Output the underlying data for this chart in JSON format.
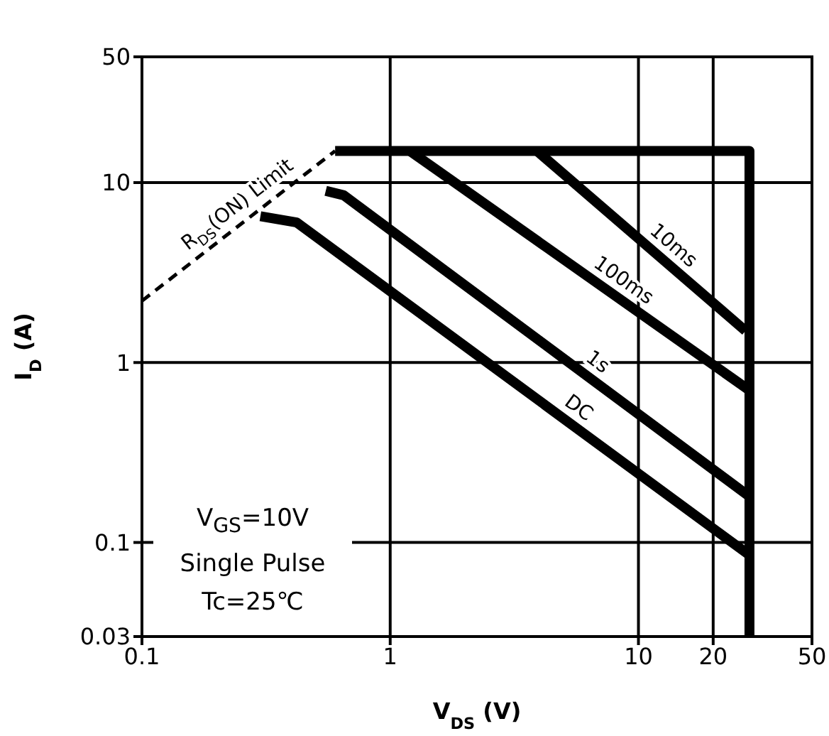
{
  "chart_data": {
    "type": "line",
    "xlabel": "V$_{DS}$ (V)",
    "ylabel": "I$_{D}$ (A)",
    "log": "xy",
    "grid": true,
    "xlim": [
      0.1,
      50
    ],
    "ylim": [
      0.03,
      50
    ],
    "xticks": [
      0.1,
      1,
      10,
      20,
      50
    ],
    "yticks": [
      0.03,
      0.1,
      1,
      10,
      50
    ],
    "series": [
      {
        "name": "R$_{DS}$(ON) Limit",
        "color": "#000000",
        "line_style": "dashed",
        "x": [
          0.1,
          0.6
        ],
        "values": [
          2.2,
          15
        ]
      },
      {
        "color": "#000000",
        "x": [
          0.6,
          28,
          28
        ],
        "values": [
          15,
          15,
          0.03
        ]
      },
      {
        "name": "10ms",
        "color": "#000000",
        "x": [
          3.9,
          27
        ],
        "values": [
          15,
          1.5
        ]
      },
      {
        "name": "100ms",
        "color": "#000000",
        "x": [
          1.2,
          28
        ],
        "values": [
          15,
          0.7
        ]
      },
      {
        "name": "1s",
        "color": "#000000",
        "x": [
          0.55,
          0.65,
          28
        ],
        "values": [
          9,
          8.5,
          0.18
        ]
      },
      {
        "name": "DC",
        "color": "#000000",
        "x": [
          0.3,
          0.42,
          28
        ],
        "values": [
          6.5,
          6,
          0.085
        ]
      }
    ],
    "annotations": [
      "V$_{GS}$=10V\nSingle Pulse\nTc=25℃"
    ]
  }
}
